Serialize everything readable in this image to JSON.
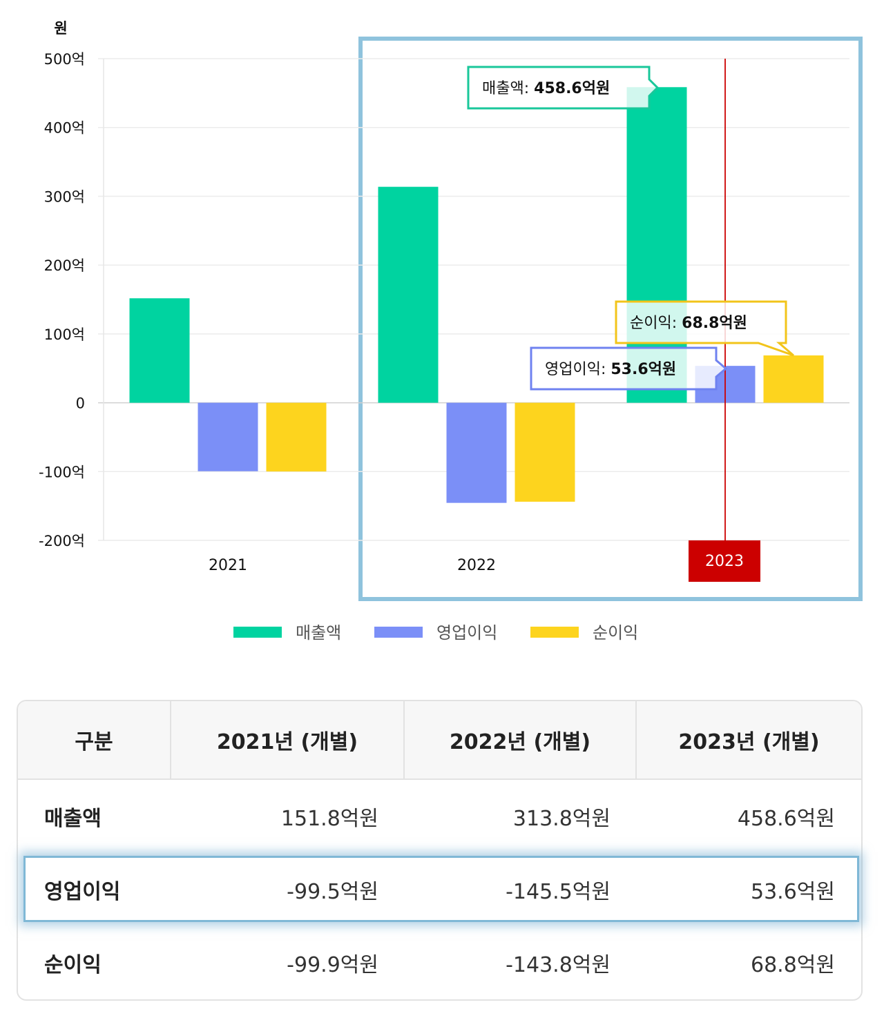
{
  "chart_data": {
    "type": "bar",
    "unit_label": "원",
    "categories": [
      "2021",
      "2022",
      "2023"
    ],
    "series": [
      {
        "name": "매출액",
        "values": [
          151.8,
          313.8,
          458.6
        ],
        "color": "#00d3a0"
      },
      {
        "name": "영업이익",
        "values": [
          -99.5,
          -145.5,
          53.6
        ],
        "color": "#7b8ff7"
      },
      {
        "name": "순이익",
        "values": [
          -99.9,
          -143.8,
          68.8
        ],
        "color": "#fdd41e"
      }
    ],
    "ylim": [
      -200,
      500
    ],
    "yticks": [
      500,
      400,
      300,
      200,
      100,
      0,
      -100,
      -200
    ],
    "ytick_labels": [
      "500억",
      "400억",
      "300억",
      "200억",
      "100억",
      "0",
      "-100억",
      "-200억"
    ],
    "grid": true,
    "legend_position": "bottom",
    "highlight_category": "2023",
    "highlight_color": "#cc0000",
    "tooltips": [
      {
        "label": "매출액: ",
        "value": "458.6억원",
        "series": 0,
        "border": "#19c79a"
      },
      {
        "label": "순이익: ",
        "value": "68.8억원",
        "series": 2,
        "border": "#f2c41a"
      },
      {
        "label": "영업이익: ",
        "value": "53.6억원",
        "series": 1,
        "border": "#6f82f0"
      }
    ]
  },
  "table": {
    "headers": [
      "구분",
      "2021년 (개별)",
      "2022년 (개별)",
      "2023년 (개별)"
    ],
    "rows": [
      {
        "label": "매출액",
        "values": [
          "151.8억원",
          "313.8억원",
          "458.6억원"
        ]
      },
      {
        "label": "영업이익",
        "values": [
          "-99.5억원",
          "-145.5억원",
          "53.6억원"
        ]
      },
      {
        "label": "순이익",
        "values": [
          "-99.9억원",
          "-143.8억원",
          "68.8억원"
        ]
      }
    ],
    "highlighted_row": "영업이익"
  }
}
